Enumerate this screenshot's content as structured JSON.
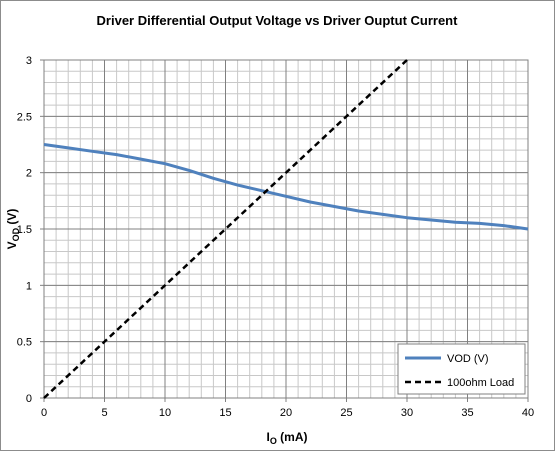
{
  "chart_data": {
    "type": "line",
    "title": "Driver Differential Output Voltage vs Driver Ouptut Current",
    "xlabel": "I",
    "xlabel_sub": "O",
    "xlabel_unit": " (mA)",
    "ylabel": "V",
    "ylabel_sub": "OD",
    "ylabel_unit": " (V)",
    "xlim": [
      0,
      40
    ],
    "ylim": [
      0,
      3
    ],
    "x_ticks": [
      0,
      5,
      10,
      15,
      20,
      25,
      30,
      35,
      40
    ],
    "x_tick_labels": [
      "0",
      "5",
      "10",
      "15",
      "20",
      "25",
      "30",
      "35",
      "40"
    ],
    "y_ticks": [
      0,
      0.5,
      1,
      1.5,
      2,
      2.5,
      3
    ],
    "y_tick_labels": [
      "0",
      "0.5",
      "1",
      "1.5",
      "2",
      "2.5",
      "3"
    ],
    "grid": true,
    "minor_grid_step_x": 1,
    "minor_grid_step_y": 0.1,
    "legend_position": "bottom-right",
    "series": [
      {
        "name": "VOD (V)",
        "color": "#4f81bd",
        "style": "solid",
        "x": [
          0,
          2,
          4,
          6,
          8,
          10,
          12,
          14,
          16,
          18,
          20,
          22,
          24,
          26,
          28,
          30,
          32,
          34,
          36,
          38,
          40
        ],
        "y": [
          2.25,
          2.22,
          2.19,
          2.16,
          2.12,
          2.08,
          2.02,
          1.95,
          1.89,
          1.84,
          1.79,
          1.74,
          1.7,
          1.66,
          1.63,
          1.6,
          1.58,
          1.56,
          1.55,
          1.53,
          1.5
        ]
      },
      {
        "name": "100ohm Load",
        "color": "#000000",
        "style": "dashed",
        "x": [
          0,
          30
        ],
        "y": [
          0,
          3
        ]
      }
    ]
  }
}
